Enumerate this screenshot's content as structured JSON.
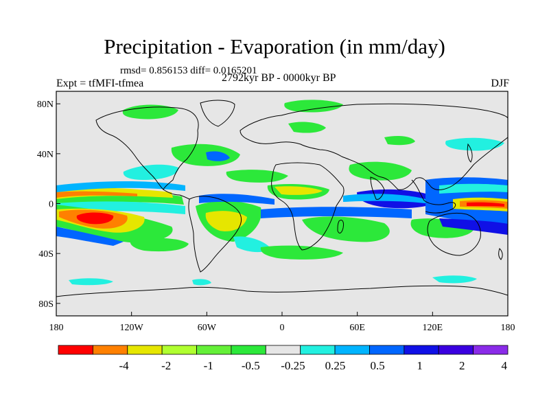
{
  "figure": {
    "title": "Precipitation - Evaporation (in mm/day)",
    "stats": "rmsd= 0.856153 diff= 0.0165201",
    "left_label": "Expt = tfMFI-tfmea",
    "center_label": "2792kyr BP - 0000kyr BP",
    "right_label": "DJF"
  },
  "map": {
    "background_color": "#e6e6e6",
    "lat_ticks": [
      {
        "value": 80,
        "label": "80N"
      },
      {
        "value": 40,
        "label": "40N"
      },
      {
        "value": 0,
        "label": "0"
      },
      {
        "value": -40,
        "label": "40S"
      },
      {
        "value": -80,
        "label": "80S"
      }
    ],
    "lon_ticks": [
      {
        "value": -180,
        "label": "180"
      },
      {
        "value": -120,
        "label": "120W"
      },
      {
        "value": -60,
        "label": "60W"
      },
      {
        "value": 0,
        "label": "0"
      },
      {
        "value": 60,
        "label": "60E"
      },
      {
        "value": 120,
        "label": "120E"
      },
      {
        "value": 180,
        "label": "180"
      }
    ],
    "lon_range": [
      -180,
      180
    ],
    "lat_range": [
      -90,
      90
    ]
  },
  "colorbar": {
    "colors": [
      "#ff0000",
      "#ff8000",
      "#e6e600",
      "#b0ff30",
      "#64f038",
      "#2ce83a",
      "#e6e6e6",
      "#22f0e0",
      "#00b4ff",
      "#0066ff",
      "#1010e6",
      "#3a00e0",
      "#8a2be8"
    ],
    "labels": [
      "-4",
      "-2",
      "-1",
      "-0.5",
      "-0.25",
      "0.25",
      "0.5",
      "1",
      "2",
      "4"
    ]
  }
}
